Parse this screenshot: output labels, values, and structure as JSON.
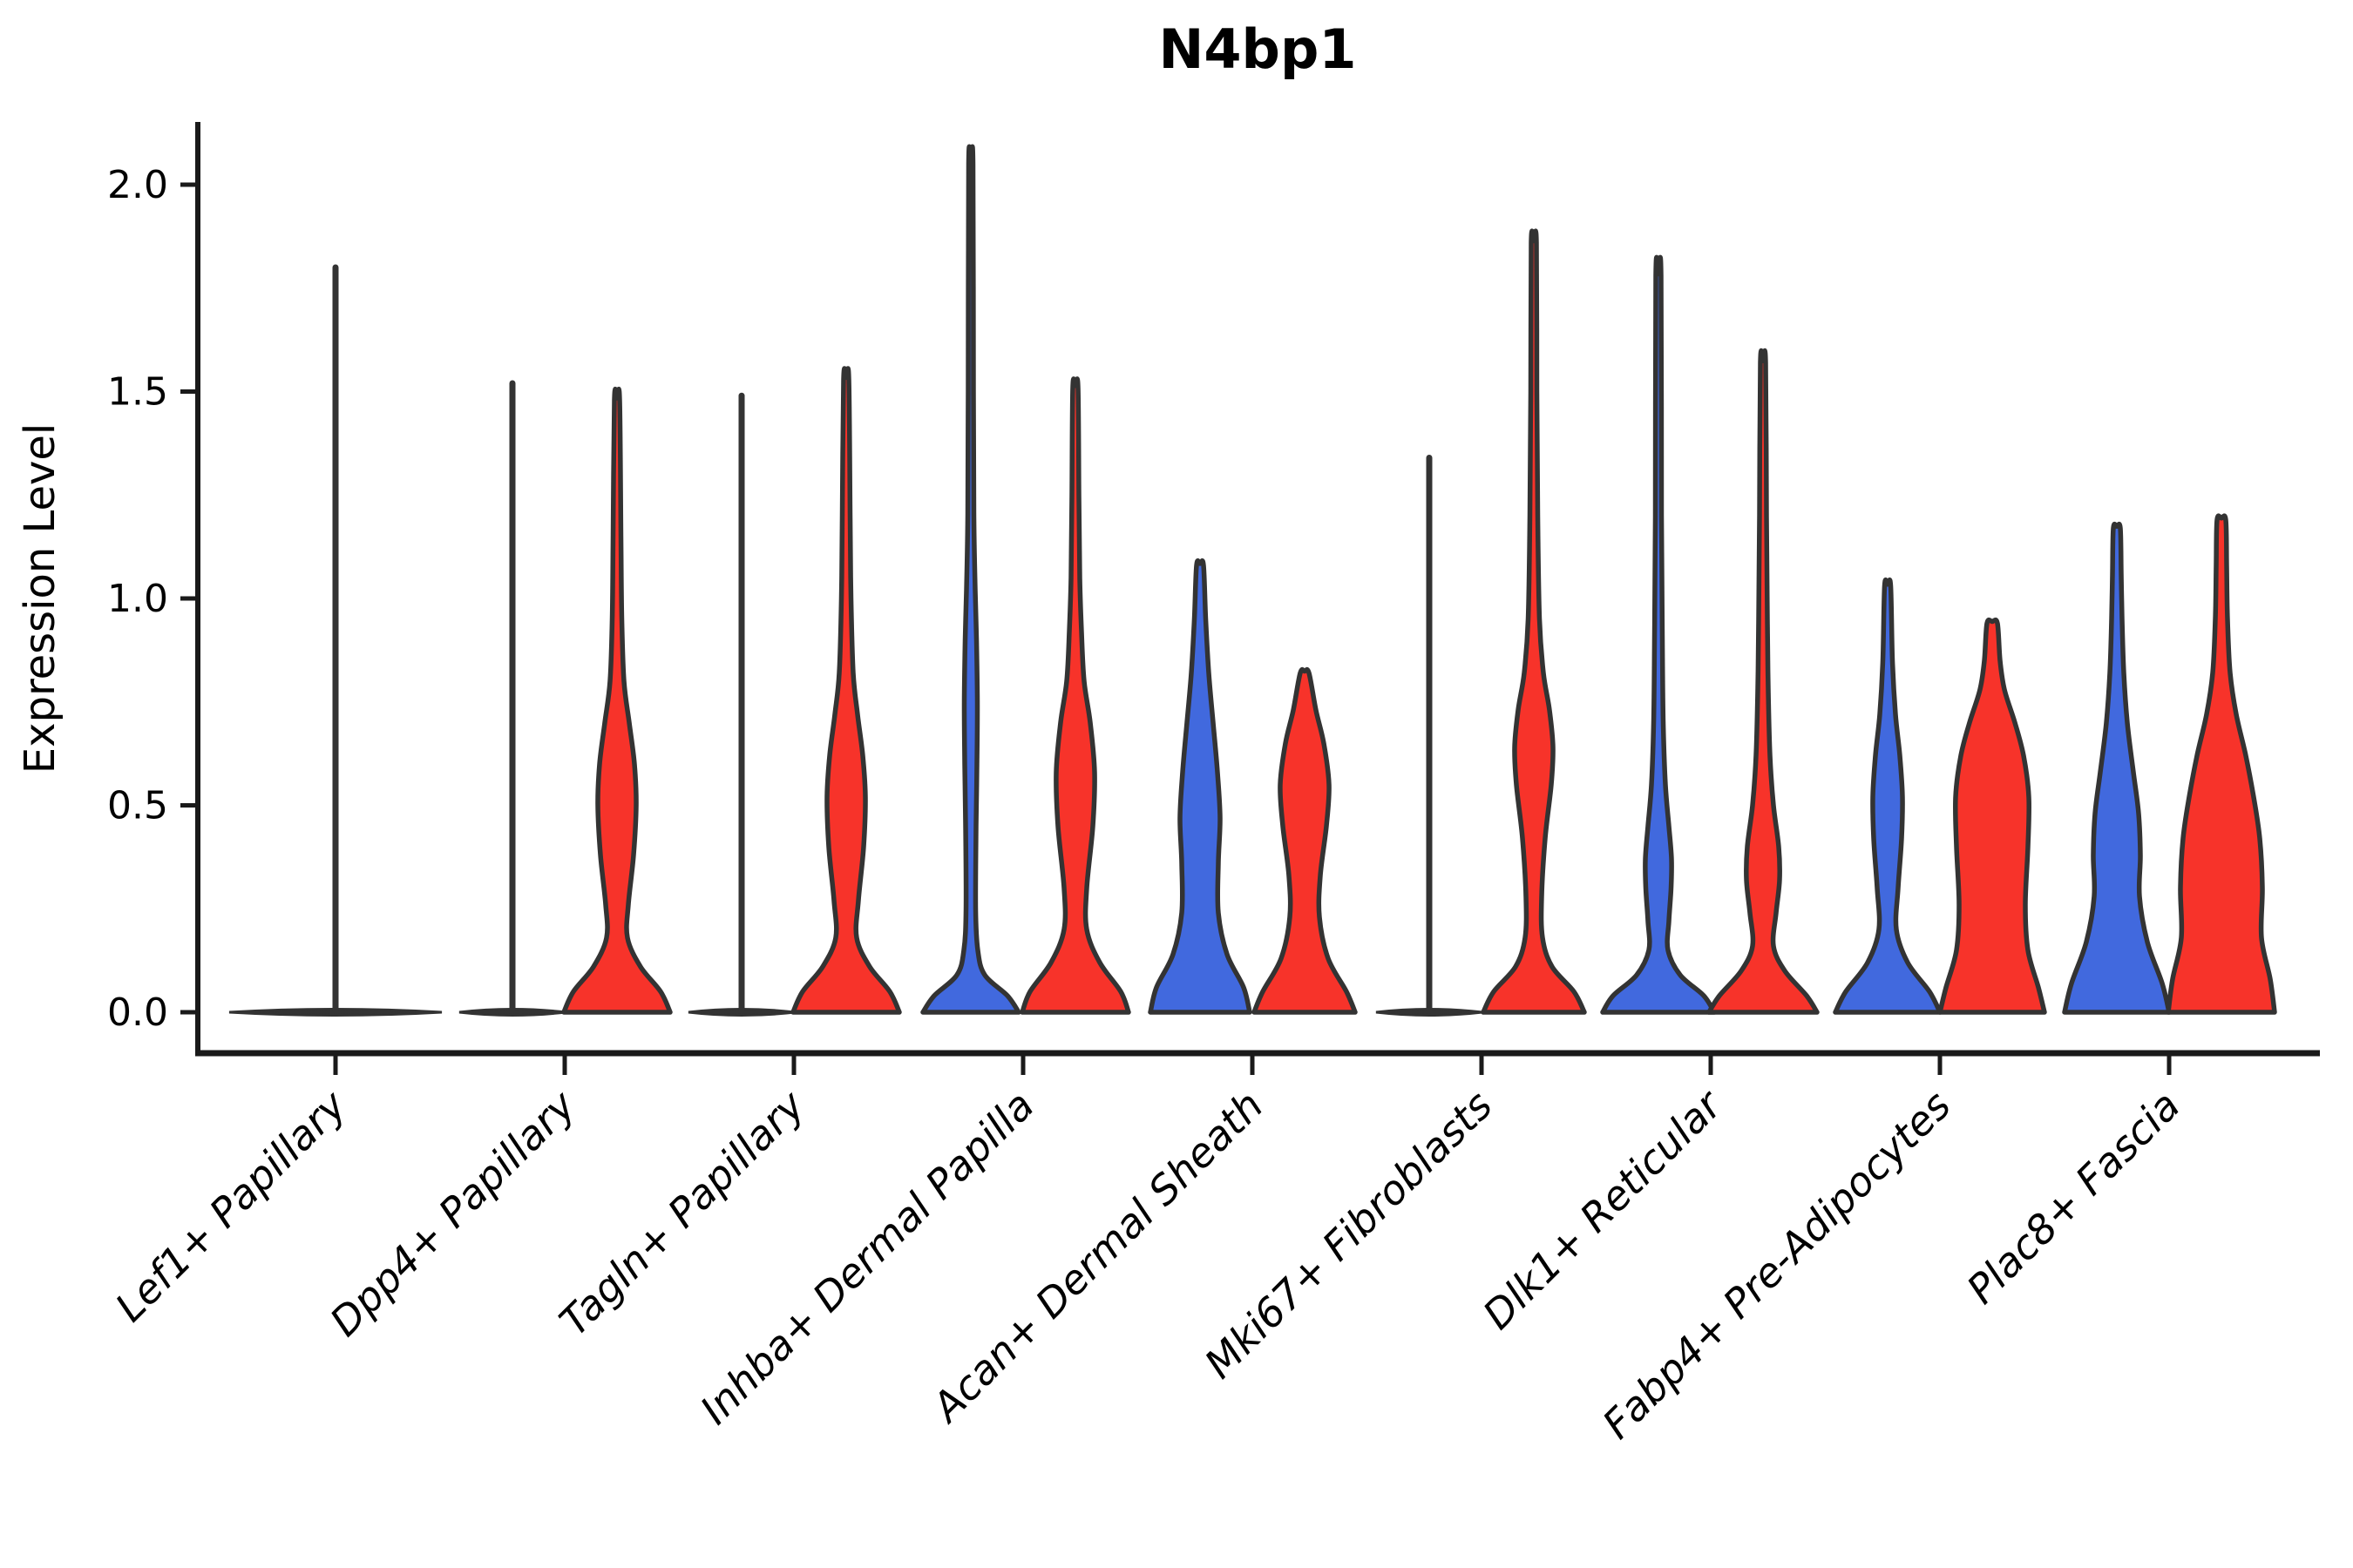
{
  "chart_data": {
    "type": "violin",
    "title": "N4bp1",
    "ylabel": "Expression Level",
    "xlabel": "",
    "ylim": [
      -0.08,
      2.15
    ],
    "yticks": [
      "0.0",
      "0.5",
      "1.0",
      "1.5",
      "2.0"
    ],
    "ytick_values": [
      0.0,
      0.5,
      1.0,
      1.5,
      2.0
    ],
    "grid": "off",
    "legend": "none",
    "colors": {
      "blue_fill": "#4169DE",
      "red_fill": "#F7332A",
      "edge": "#333333",
      "axis": "#1a1a1a",
      "background": "#ffffff"
    },
    "categories": [
      "Lef1+ Papillary",
      "Dpp4+ Papillary",
      "Tagln+ Papillary",
      "Inhba+ Dermal Papilla",
      "Acan+ Dermal Sheath",
      "Mki67+ Fibroblasts",
      "Dlk1+ Reticular",
      "Fabp4+ Pre-Adipocytes",
      "Plac8+ Fascia"
    ],
    "note_units": "profile entries are [expression_value, half_width_px]; max is whisker-top expression",
    "groups": [
      {
        "label": "Lef1+ Papillary",
        "violins": [
          {
            "side": "center",
            "color": "none",
            "kind": "collapsed",
            "max": 1.8,
            "half_width": 122
          }
        ]
      },
      {
        "label": "Dpp4+ Papillary",
        "violins": [
          {
            "side": "left",
            "color": "blue",
            "kind": "collapsed",
            "max": 1.52,
            "half_width": 61
          },
          {
            "side": "right",
            "color": "red",
            "kind": "shape",
            "max": 1.48,
            "profile": [
              [
                0,
                61
              ],
              [
                0.05,
                50
              ],
              [
                0.11,
                27
              ],
              [
                0.18,
                12
              ],
              [
                0.26,
                13
              ],
              [
                0.38,
                19
              ],
              [
                0.5,
                22
              ],
              [
                0.6,
                20
              ],
              [
                0.7,
                14
              ],
              [
                0.8,
                8
              ],
              [
                0.95,
                5.5
              ],
              [
                1.15,
                4.5
              ],
              [
                1.48,
                3
              ]
            ]
          }
        ]
      },
      {
        "label": "Tagln+ Papillary",
        "violins": [
          {
            "side": "left",
            "color": "blue",
            "kind": "collapsed",
            "max": 1.49,
            "half_width": 61
          },
          {
            "side": "right",
            "color": "red",
            "kind": "shape",
            "max": 1.53,
            "profile": [
              [
                0,
                61
              ],
              [
                0.05,
                50
              ],
              [
                0.11,
                27
              ],
              [
                0.18,
                12
              ],
              [
                0.27,
                14
              ],
              [
                0.4,
                20
              ],
              [
                0.52,
                22
              ],
              [
                0.62,
                19
              ],
              [
                0.72,
                13
              ],
              [
                0.82,
                8
              ],
              [
                1.0,
                5.5
              ],
              [
                1.2,
                4.5
              ],
              [
                1.53,
                3
              ]
            ]
          }
        ]
      },
      {
        "label": "Inhba+ Dermal Papilla",
        "violins": [
          {
            "side": "left",
            "color": "blue",
            "kind": "shape",
            "max": 2.05,
            "profile": [
              [
                0,
                55
              ],
              [
                0.04,
                42
              ],
              [
                0.09,
                16
              ],
              [
                0.15,
                8
              ],
              [
                0.25,
                5.5
              ],
              [
                0.45,
                6
              ],
              [
                0.6,
                7
              ],
              [
                0.75,
                7.5
              ],
              [
                0.9,
                6.5
              ],
              [
                1.02,
                5
              ],
              [
                1.2,
                3.5
              ],
              [
                1.5,
                3
              ],
              [
                2.05,
                2.5
              ]
            ]
          },
          {
            "side": "right",
            "color": "red",
            "kind": "shape",
            "max": 1.51,
            "profile": [
              [
                0,
                61
              ],
              [
                0.05,
                52
              ],
              [
                0.12,
                28
              ],
              [
                0.2,
                13
              ],
              [
                0.3,
                13
              ],
              [
                0.45,
                20
              ],
              [
                0.58,
                22
              ],
              [
                0.7,
                17
              ],
              [
                0.8,
                10
              ],
              [
                0.92,
                7
              ],
              [
                1.05,
                5
              ],
              [
                1.25,
                4
              ],
              [
                1.51,
                3
              ]
            ]
          }
        ]
      },
      {
        "label": "Acan+ Dermal Sheath",
        "violins": [
          {
            "side": "left",
            "color": "blue",
            "kind": "shape",
            "max": 1.08,
            "profile": [
              [
                0,
                57
              ],
              [
                0.06,
                50
              ],
              [
                0.14,
                31
              ],
              [
                0.24,
                21
              ],
              [
                0.36,
                21
              ],
              [
                0.47,
                23
              ],
              [
                0.58,
                20
              ],
              [
                0.7,
                15
              ],
              [
                0.82,
                10
              ],
              [
                0.95,
                6.5
              ],
              [
                1.08,
                4
              ]
            ]
          },
          {
            "side": "right",
            "color": "red",
            "kind": "shape",
            "max": 0.82,
            "profile": [
              [
                0,
                58
              ],
              [
                0.05,
                48
              ],
              [
                0.13,
                27
              ],
              [
                0.23,
                17
              ],
              [
                0.33,
                18
              ],
              [
                0.45,
                25
              ],
              [
                0.55,
                28
              ],
              [
                0.65,
                22
              ],
              [
                0.73,
                13
              ],
              [
                0.82,
                5
              ]
            ]
          }
        ]
      },
      {
        "label": "Mki67+ Fibroblasts",
        "violins": [
          {
            "side": "left",
            "color": "blue",
            "kind": "collapsed",
            "max": 1.34,
            "half_width": 61
          },
          {
            "side": "right",
            "color": "red",
            "kind": "shape",
            "max": 1.86,
            "profile": [
              [
                0,
                58
              ],
              [
                0.05,
                46
              ],
              [
                0.11,
                21
              ],
              [
                0.18,
                10
              ],
              [
                0.28,
                9
              ],
              [
                0.42,
                13
              ],
              [
                0.55,
                20
              ],
              [
                0.64,
                22
              ],
              [
                0.73,
                18
              ],
              [
                0.82,
                11
              ],
              [
                0.95,
                6.5
              ],
              [
                1.2,
                4.5
              ],
              [
                1.5,
                3.5
              ],
              [
                1.86,
                3
              ]
            ]
          }
        ]
      },
      {
        "label": "Dlk1+ Reticular",
        "violins": [
          {
            "side": "left",
            "color": "blue",
            "kind": "shape",
            "max": 1.78,
            "profile": [
              [
                0,
                64
              ],
              [
                0.04,
                52
              ],
              [
                0.09,
                25
              ],
              [
                0.15,
                11
              ],
              [
                0.22,
                12
              ],
              [
                0.3,
                14.5
              ],
              [
                0.37,
                15
              ],
              [
                0.45,
                12
              ],
              [
                0.55,
                8
              ],
              [
                0.7,
                5.5
              ],
              [
                0.9,
                4.5
              ],
              [
                1.2,
                3.5
              ],
              [
                1.78,
                3
              ]
            ]
          },
          {
            "side": "right",
            "color": "red",
            "kind": "shape",
            "max": 1.57,
            "profile": [
              [
                0,
                62
              ],
              [
                0.04,
                50
              ],
              [
                0.1,
                25
              ],
              [
                0.16,
                12
              ],
              [
                0.24,
                15
              ],
              [
                0.32,
                19
              ],
              [
                0.4,
                18
              ],
              [
                0.5,
                12
              ],
              [
                0.62,
                8
              ],
              [
                0.78,
                6
              ],
              [
                0.95,
                5
              ],
              [
                1.2,
                4
              ],
              [
                1.57,
                3
              ]
            ]
          }
        ]
      },
      {
        "label": "Fabp4+ Pre-Adipocytes",
        "violins": [
          {
            "side": "left",
            "color": "blue",
            "kind": "shape",
            "max": 1.03,
            "profile": [
              [
                0,
                60
              ],
              [
                0.05,
                48
              ],
              [
                0.12,
                23
              ],
              [
                0.2,
                10
              ],
              [
                0.3,
                12
              ],
              [
                0.42,
                16
              ],
              [
                0.52,
                17
              ],
              [
                0.62,
                14
              ],
              [
                0.72,
                9
              ],
              [
                0.85,
                5.5
              ],
              [
                1.03,
                3.5
              ]
            ]
          },
          {
            "side": "right",
            "color": "red",
            "kind": "shape",
            "max": 0.94,
            "profile": [
              [
                0,
                60
              ],
              [
                0.06,
                53
              ],
              [
                0.15,
                41
              ],
              [
                0.26,
                38
              ],
              [
                0.4,
                41
              ],
              [
                0.52,
                42
              ],
              [
                0.62,
                36
              ],
              [
                0.7,
                26
              ],
              [
                0.78,
                14
              ],
              [
                0.85,
                9
              ],
              [
                0.94,
                6
              ]
            ]
          }
        ]
      },
      {
        "label": "Plac8+ Fascia",
        "violins": [
          {
            "side": "left",
            "color": "blue",
            "kind": "shape",
            "max": 1.17,
            "profile": [
              [
                0,
                60
              ],
              [
                0.07,
                52
              ],
              [
                0.17,
                35
              ],
              [
                0.28,
                26
              ],
              [
                0.38,
                27
              ],
              [
                0.48,
                25
              ],
              [
                0.58,
                19
              ],
              [
                0.7,
                12
              ],
              [
                0.82,
                8
              ],
              [
                0.95,
                6
              ],
              [
                1.06,
                5
              ],
              [
                1.17,
                4
              ]
            ]
          },
          {
            "side": "right",
            "color": "red",
            "kind": "shape",
            "max": 1.19,
            "profile": [
              [
                0,
                61
              ],
              [
                0.08,
                56
              ],
              [
                0.18,
                46
              ],
              [
                0.3,
                47
              ],
              [
                0.42,
                44
              ],
              [
                0.52,
                37
              ],
              [
                0.62,
                28
              ],
              [
                0.72,
                17
              ],
              [
                0.82,
                10
              ],
              [
                0.95,
                7
              ],
              [
                1.08,
                6
              ],
              [
                1.19,
                5
              ]
            ]
          }
        ]
      }
    ]
  }
}
